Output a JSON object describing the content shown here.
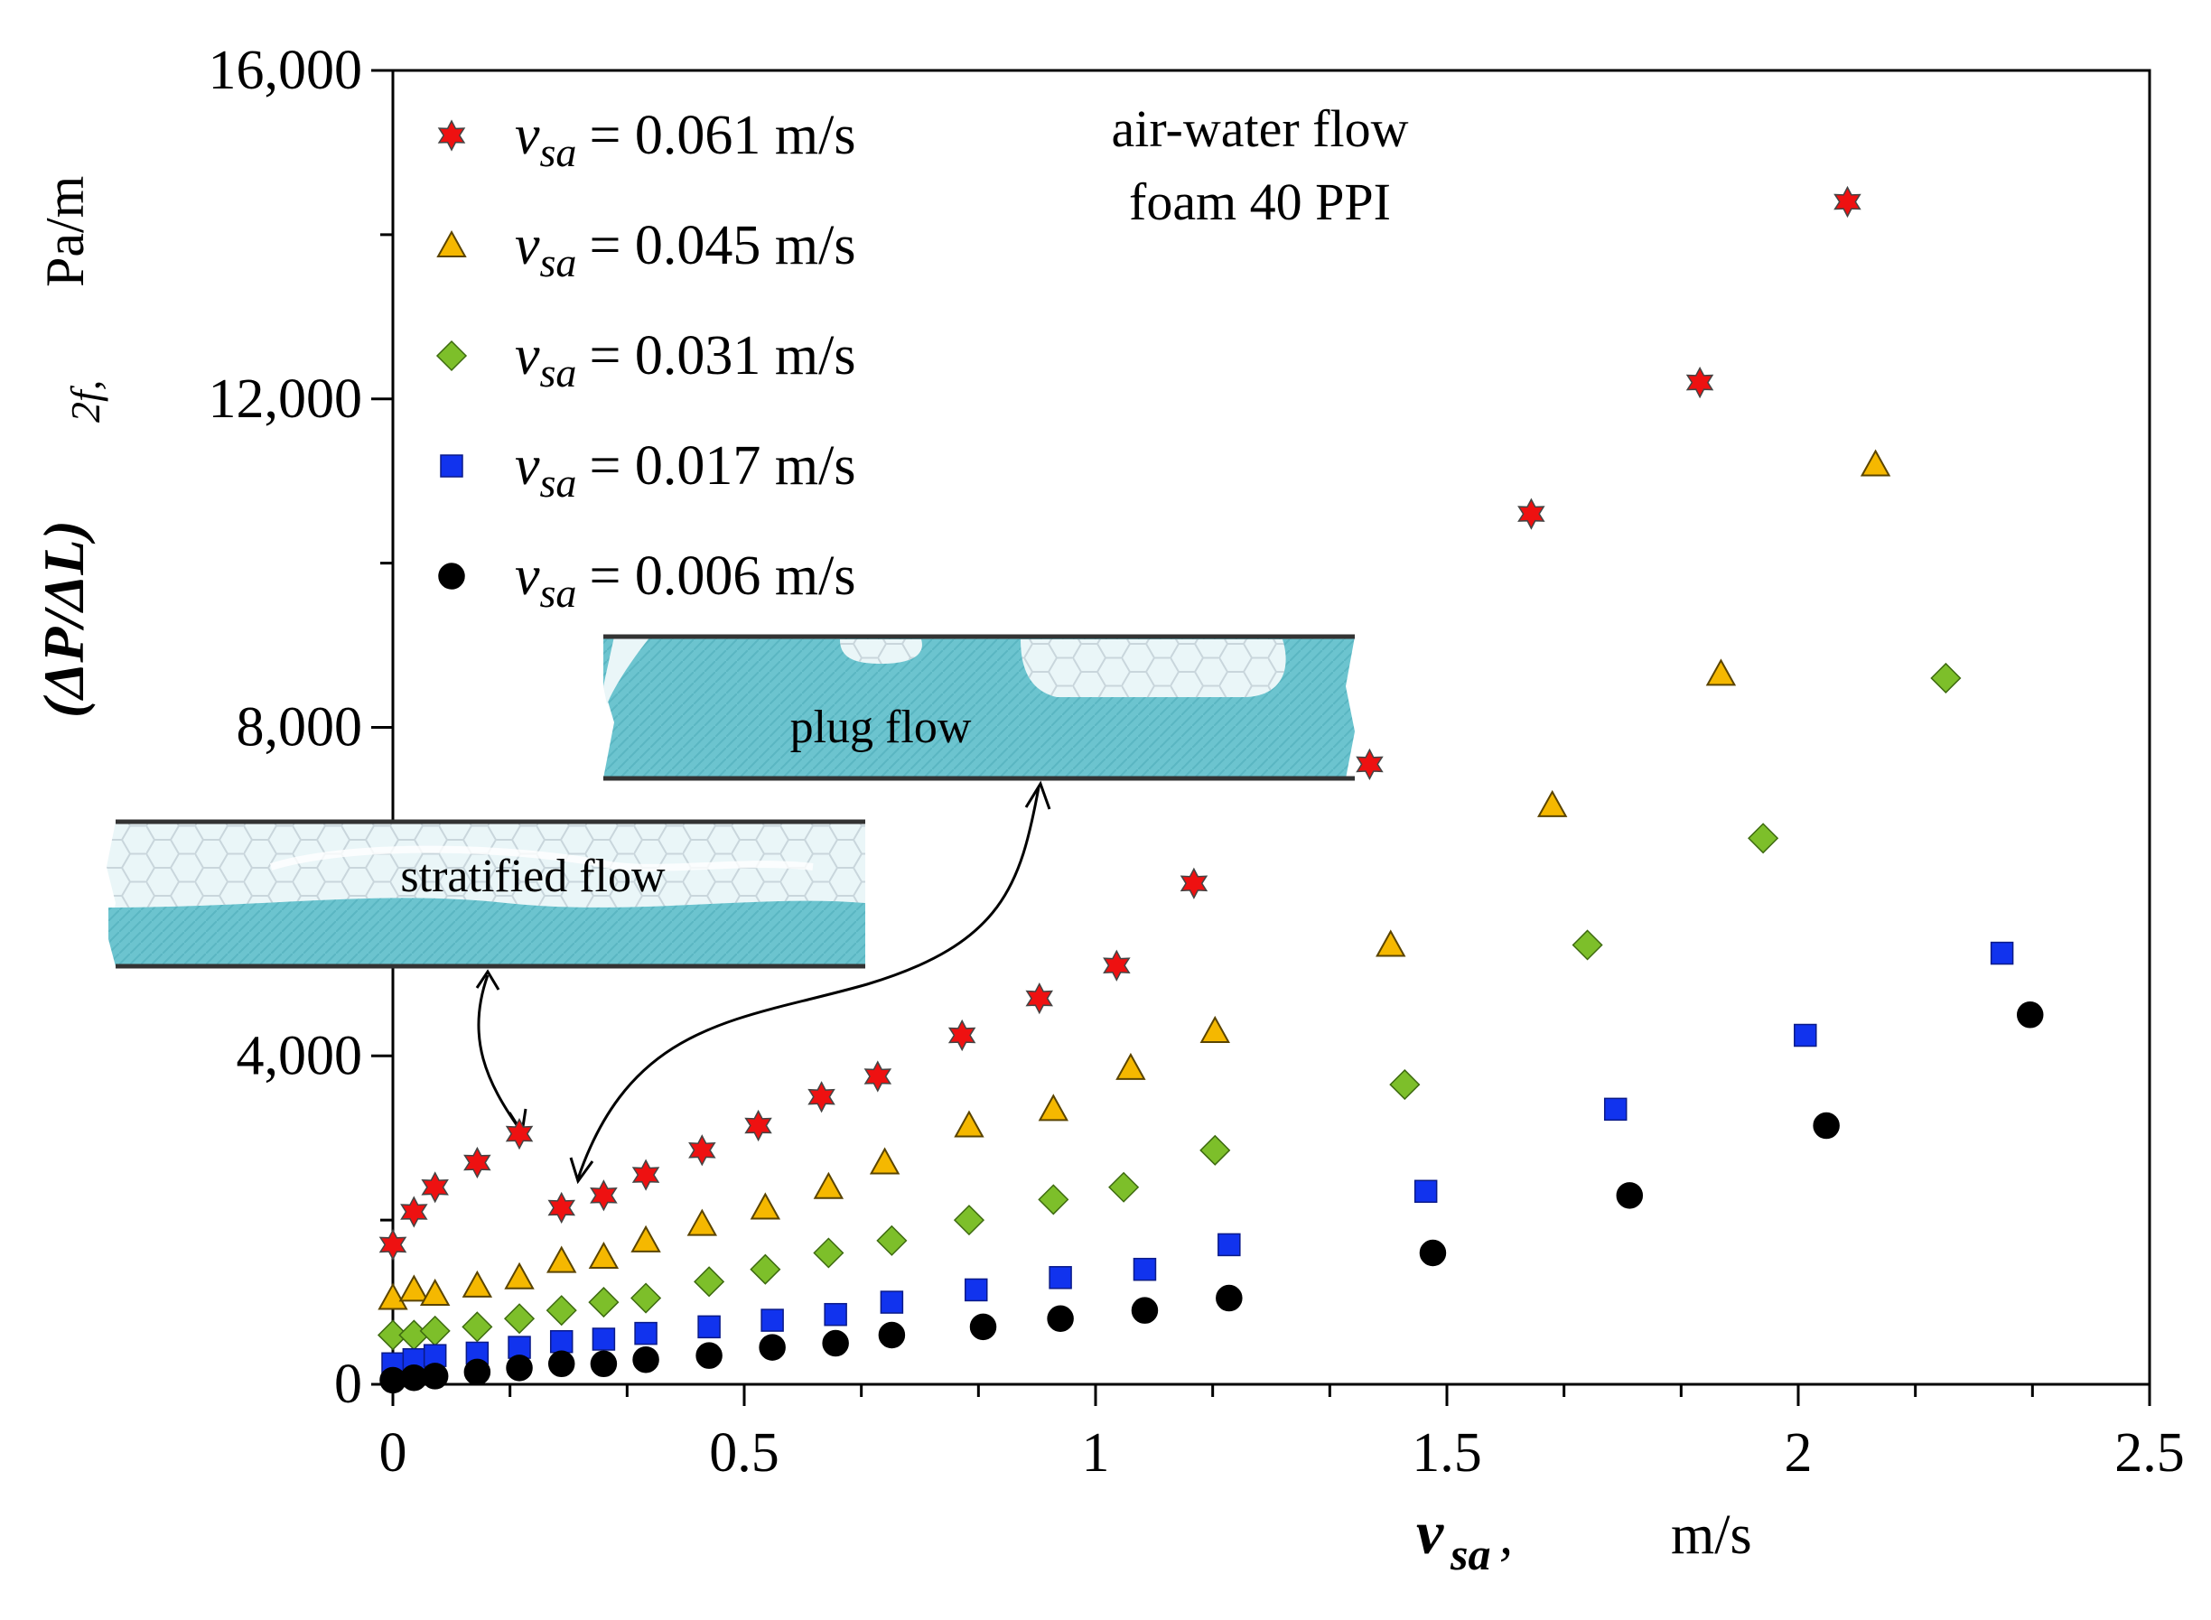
{
  "chart_data": {
    "type": "scatter",
    "annotation": [
      "air-water flow",
      "foam 40 PPI"
    ],
    "ylabel": {
      "main": "(ΔP/ΔL)",
      "sub": "2f,",
      "unit": "Pa/m"
    },
    "xlabel": {
      "main": "v",
      "sub": "sa",
      "comma": ",",
      "unit": "m/s"
    },
    "xlim": [
      0,
      2.5
    ],
    "ylim": [
      0,
      16000
    ],
    "x_ticks": [
      0,
      0.5,
      1,
      1.5,
      2,
      2.5
    ],
    "x_tick_labels": [
      "0",
      "0.5",
      "1",
      "1.5",
      "2",
      "2.5"
    ],
    "y_ticks": [
      0,
      4000,
      8000,
      12000,
      16000
    ],
    "y_tick_labels": [
      "0",
      "4,000",
      "8,000",
      "12,000",
      "16,000"
    ],
    "legend_position": "top-left",
    "insets": {
      "stratified": "stratified flow",
      "plug": "plug flow"
    },
    "series": [
      {
        "legend_var": "v",
        "legend_sub": "sa",
        "legend_value": "= 0.061 m/s",
        "marker": "star",
        "color": "#ee1111",
        "x": [
          0,
          0.03,
          0.06,
          0.12,
          0.18,
          0.24,
          0.3,
          0.36,
          0.44,
          0.52,
          0.61,
          0.69,
          0.81,
          0.92,
          1.03,
          1.14,
          1.39,
          1.62,
          1.86,
          2.07
        ],
        "y": [
          1700,
          2100,
          2400,
          2700,
          3050,
          2150,
          2300,
          2550,
          2850,
          3150,
          3500,
          3750,
          4250,
          4700,
          5100,
          6100,
          7550,
          10600,
          12200,
          14400
        ]
      },
      {
        "legend_var": "v",
        "legend_sub": "sa",
        "legend_value": "= 0.045 m/s",
        "marker": "triangle",
        "color": "#f5b800",
        "x": [
          0,
          0.03,
          0.06,
          0.12,
          0.18,
          0.24,
          0.3,
          0.36,
          0.44,
          0.53,
          0.62,
          0.7,
          0.82,
          0.94,
          1.05,
          1.17,
          1.42,
          1.65,
          1.89,
          2.11
        ],
        "y": [
          1050,
          1150,
          1100,
          1200,
          1300,
          1500,
          1550,
          1750,
          1950,
          2150,
          2400,
          2700,
          3150,
          3350,
          3850,
          4300,
          5350,
          7050,
          8650,
          11200
        ]
      },
      {
        "legend_var": "v",
        "legend_sub": "sa",
        "legend_value": "= 0.031 m/s",
        "marker": "diamond",
        "color": "#7dbf2a",
        "x": [
          0,
          0.03,
          0.06,
          0.12,
          0.18,
          0.24,
          0.3,
          0.36,
          0.45,
          0.53,
          0.62,
          0.71,
          0.82,
          0.94,
          1.04,
          1.17,
          1.44,
          1.7,
          1.95,
          2.21
        ],
        "y": [
          600,
          600,
          650,
          700,
          800,
          900,
          1000,
          1050,
          1250,
          1400,
          1600,
          1750,
          2000,
          2250,
          2400,
          2850,
          3650,
          5350,
          6650,
          8600
        ]
      },
      {
        "legend_var": "v",
        "legend_sub": "sa",
        "legend_value": "= 0.017 m/s",
        "marker": "square",
        "color": "#1133ee",
        "x": [
          0,
          0.03,
          0.06,
          0.12,
          0.18,
          0.24,
          0.3,
          0.36,
          0.45,
          0.54,
          0.63,
          0.71,
          0.83,
          0.95,
          1.07,
          1.19,
          1.47,
          1.74,
          2.01,
          2.29
        ],
        "y": [
          250,
          300,
          350,
          380,
          450,
          520,
          550,
          620,
          700,
          780,
          850,
          1000,
          1150,
          1300,
          1400,
          1700,
          2350,
          3350,
          4250,
          5250
        ]
      },
      {
        "legend_var": "v",
        "legend_sub": "sa",
        "legend_value": "= 0.006 m/s",
        "marker": "circle",
        "color": "#000000",
        "x": [
          0,
          0.03,
          0.06,
          0.12,
          0.18,
          0.24,
          0.3,
          0.36,
          0.45,
          0.54,
          0.63,
          0.71,
          0.84,
          0.95,
          1.07,
          1.19,
          1.48,
          1.76,
          2.04,
          2.33
        ],
        "y": [
          50,
          80,
          100,
          150,
          200,
          250,
          250,
          300,
          350,
          450,
          500,
          600,
          700,
          800,
          900,
          1050,
          1600,
          2300,
          3150,
          4500
        ]
      }
    ]
  }
}
